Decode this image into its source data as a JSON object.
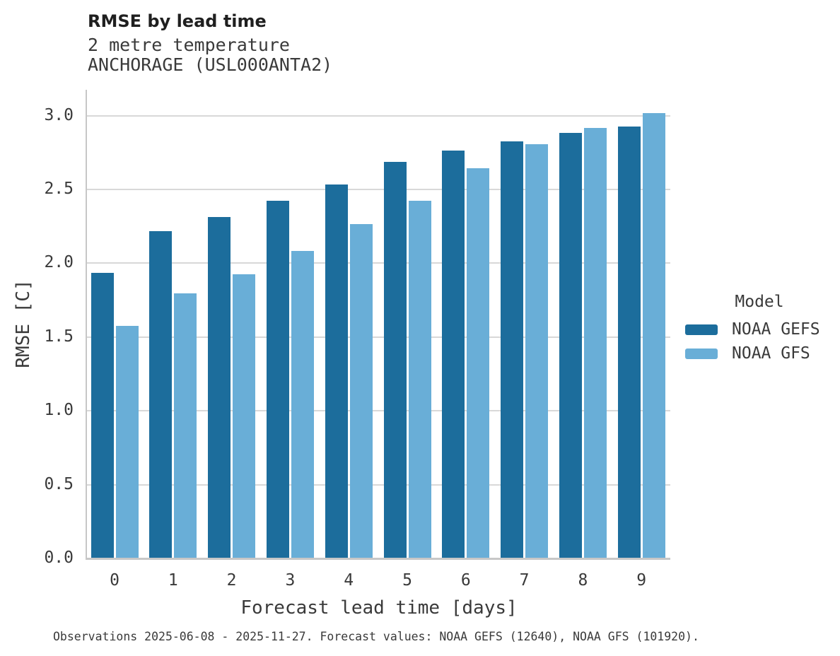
{
  "title": "RMSE by lead time",
  "subtitle_lines": [
    "2 metre temperature",
    "ANCHORAGE (USL000ANTA2)"
  ],
  "footer": "Observations 2025-06-08 - 2025-11-27. Forecast values: NOAA GEFS (12640), NOAA GFS (101920).",
  "legend": {
    "title": "Model",
    "items": [
      {
        "label": "NOAA GEFS",
        "color": "#1c6d9c"
      },
      {
        "label": "NOAA GFS",
        "color": "#69aed7"
      }
    ]
  },
  "colors": {
    "series_dark_blue": "#1c6d9c",
    "series_light_blue": "#69aed7",
    "gridline": "#d8d8d8",
    "axis_spine": "#c7c7c7",
    "text": "#3a3a3a",
    "title_text": "#1f1f1f"
  },
  "chart_data": {
    "type": "bar",
    "title": "RMSE by lead time",
    "categories": [
      0,
      1,
      2,
      3,
      4,
      5,
      6,
      7,
      8,
      9
    ],
    "series": [
      {
        "name": "NOAA GEFS",
        "color": "#1c6d9c",
        "values": [
          1.93,
          2.21,
          2.31,
          2.42,
          2.53,
          2.68,
          2.76,
          2.82,
          2.88,
          2.92
        ]
      },
      {
        "name": "NOAA GFS",
        "color": "#69aed7",
        "values": [
          1.57,
          1.79,
          1.92,
          2.08,
          2.26,
          2.42,
          2.64,
          2.8,
          2.91,
          3.01
        ]
      }
    ],
    "xlabel": "Forecast lead time [days]",
    "ylabel": "RMSE [C]",
    "ylim": [
      0,
      3.17
    ],
    "yticks": [
      0.0,
      0.5,
      1.0,
      1.5,
      2.0,
      2.5,
      3.0
    ],
    "grid": true,
    "legend_position": "center right"
  }
}
